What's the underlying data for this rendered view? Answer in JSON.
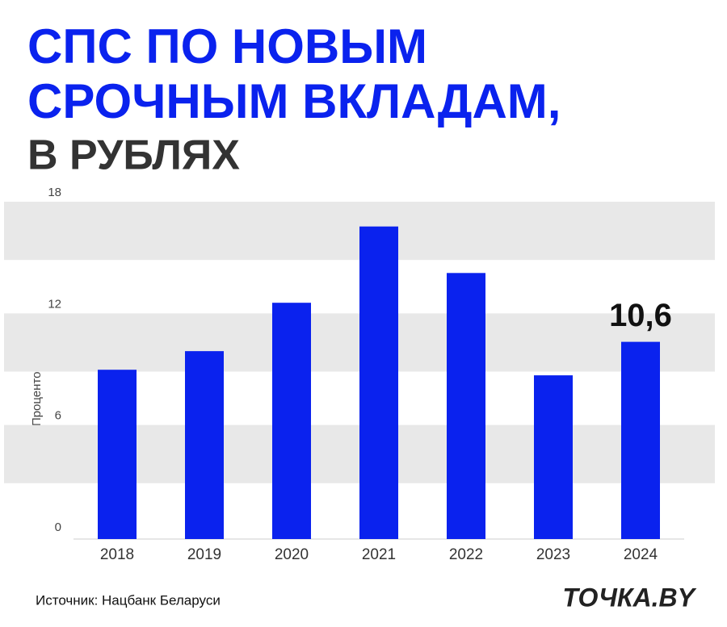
{
  "chart_data": {
    "type": "bar",
    "title": [
      "СПС ПО НОВЫМ",
      "СРОЧНЫМ ВКЛАДАМ,"
    ],
    "subtitle": "В РУБЛЯХ",
    "y_label": "Процентов годовых",
    "categories": [
      "2018",
      "2019",
      "2020",
      "2021",
      "2022",
      "2023",
      "2024"
    ],
    "values": [
      9.1,
      10.1,
      12.7,
      16.8,
      14.3,
      8.8,
      10.6
    ],
    "value_labels": [
      null,
      null,
      null,
      null,
      null,
      null,
      "10,6"
    ],
    "color": "#0a22ee",
    "ylim": [
      0,
      18
    ],
    "yticks": [
      0,
      6,
      12,
      18
    ],
    "grid": true,
    "source": "Источник: Нацбанк Беларуси",
    "logo": "ТОЧКА.BY"
  }
}
